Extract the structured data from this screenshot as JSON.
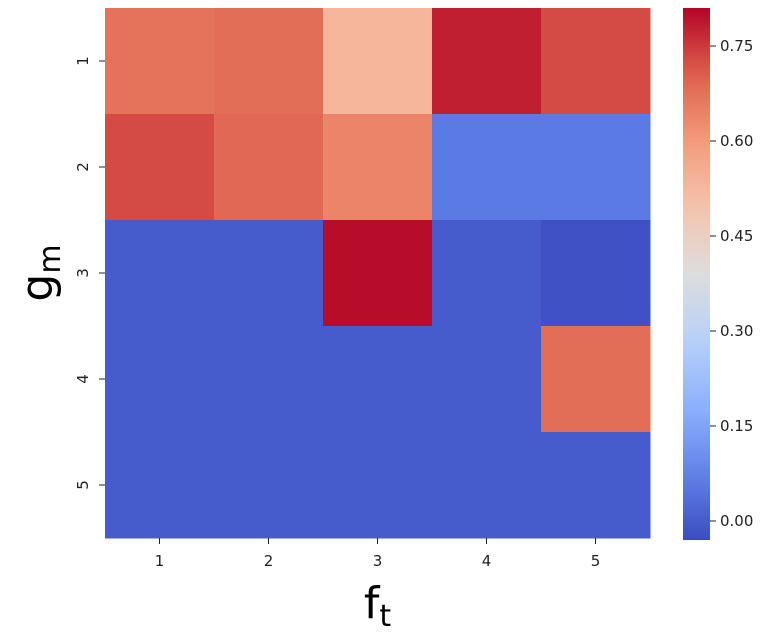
{
  "chart_data": {
    "type": "heatmap",
    "title": "",
    "xlabel": "f",
    "xlabel_sub": "t",
    "ylabel": "g",
    "ylabel_sub": "m",
    "x_categories": [
      "1",
      "2",
      "3",
      "4",
      "5"
    ],
    "y_categories": [
      "1",
      "2",
      "3",
      "4",
      "5"
    ],
    "values": [
      [
        0.67,
        0.68,
        0.53,
        0.78,
        0.73
      ],
      [
        0.73,
        0.69,
        0.64,
        0.06,
        0.06
      ],
      [
        0.0,
        0.0,
        0.8,
        0.0,
        -0.02
      ],
      [
        0.0,
        0.0,
        0.0,
        0.0,
        0.68
      ],
      [
        0.0,
        0.0,
        0.0,
        0.0,
        0.0
      ]
    ],
    "colormap": "coolwarm",
    "vmin": -0.03,
    "vmax": 0.81,
    "colorbar_ticks": [
      "0.00",
      "0.15",
      "0.30",
      "0.45",
      "0.60",
      "0.75"
    ],
    "colorbar_tick_values": [
      0.0,
      0.15,
      0.3,
      0.45,
      0.6,
      0.75
    ],
    "grid": false,
    "colorbar_position": "right"
  }
}
